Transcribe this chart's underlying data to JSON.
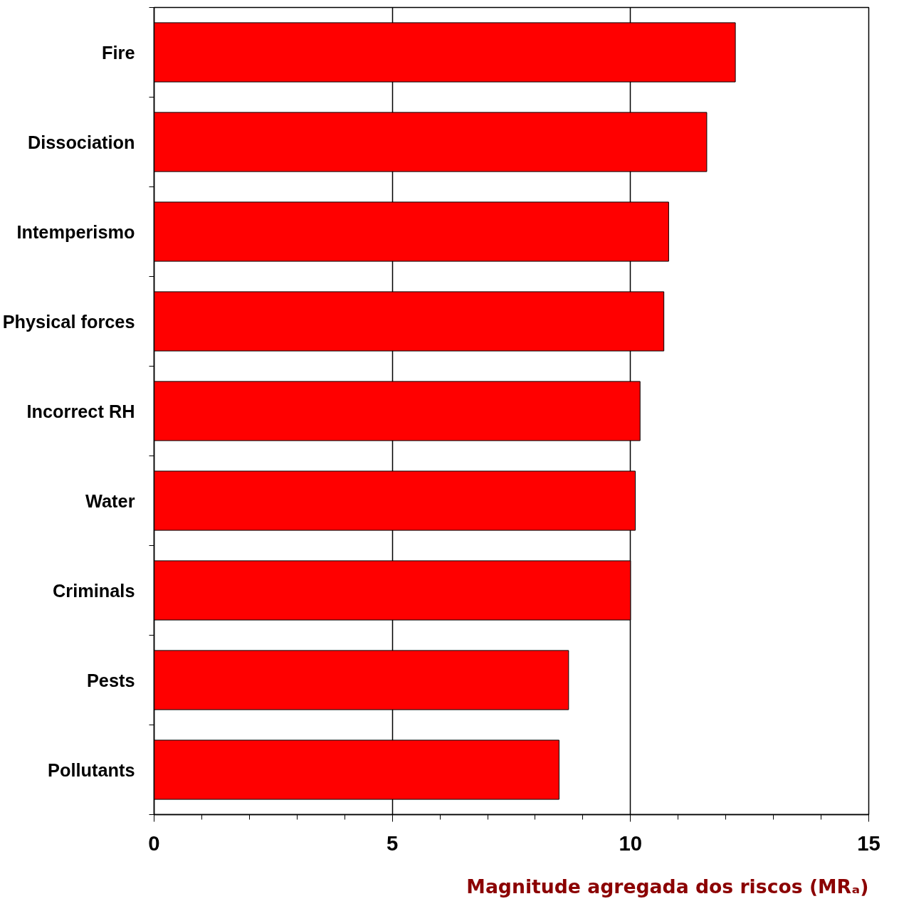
{
  "chart_data": {
    "type": "bar",
    "orientation": "horizontal",
    "xlabel": "Magnitude agregada dos riscos (MRₐ)",
    "categories": [
      "Fire",
      "Dissociation",
      "Intemperismo",
      "Physical forces",
      "Incorrect RH",
      "Water",
      "Criminals",
      "Pests",
      "Pollutants"
    ],
    "values": [
      12.2,
      11.6,
      10.8,
      10.7,
      10.2,
      10.1,
      10.0,
      8.7,
      8.5
    ],
    "color": "#ff0000",
    "xlim": [
      0,
      15
    ],
    "xticks": [
      0,
      {
        "value": 1,
        "label": null
      },
      {
        "value": 2,
        "label": null
      },
      {
        "value": 3,
        "label": null
      },
      {
        "value": 4,
        "label": null
      },
      5,
      {
        "value": 6,
        "label": null
      },
      {
        "value": 7,
        "label": null
      },
      {
        "value": 8,
        "label": null
      },
      {
        "value": 9,
        "label": null
      },
      10,
      {
        "value": 11,
        "label": null
      },
      {
        "value": 12,
        "label": null
      },
      {
        "value": 13,
        "label": null
      },
      {
        "value": 14,
        "label": null
      },
      15
    ],
    "grid": "x"
  }
}
